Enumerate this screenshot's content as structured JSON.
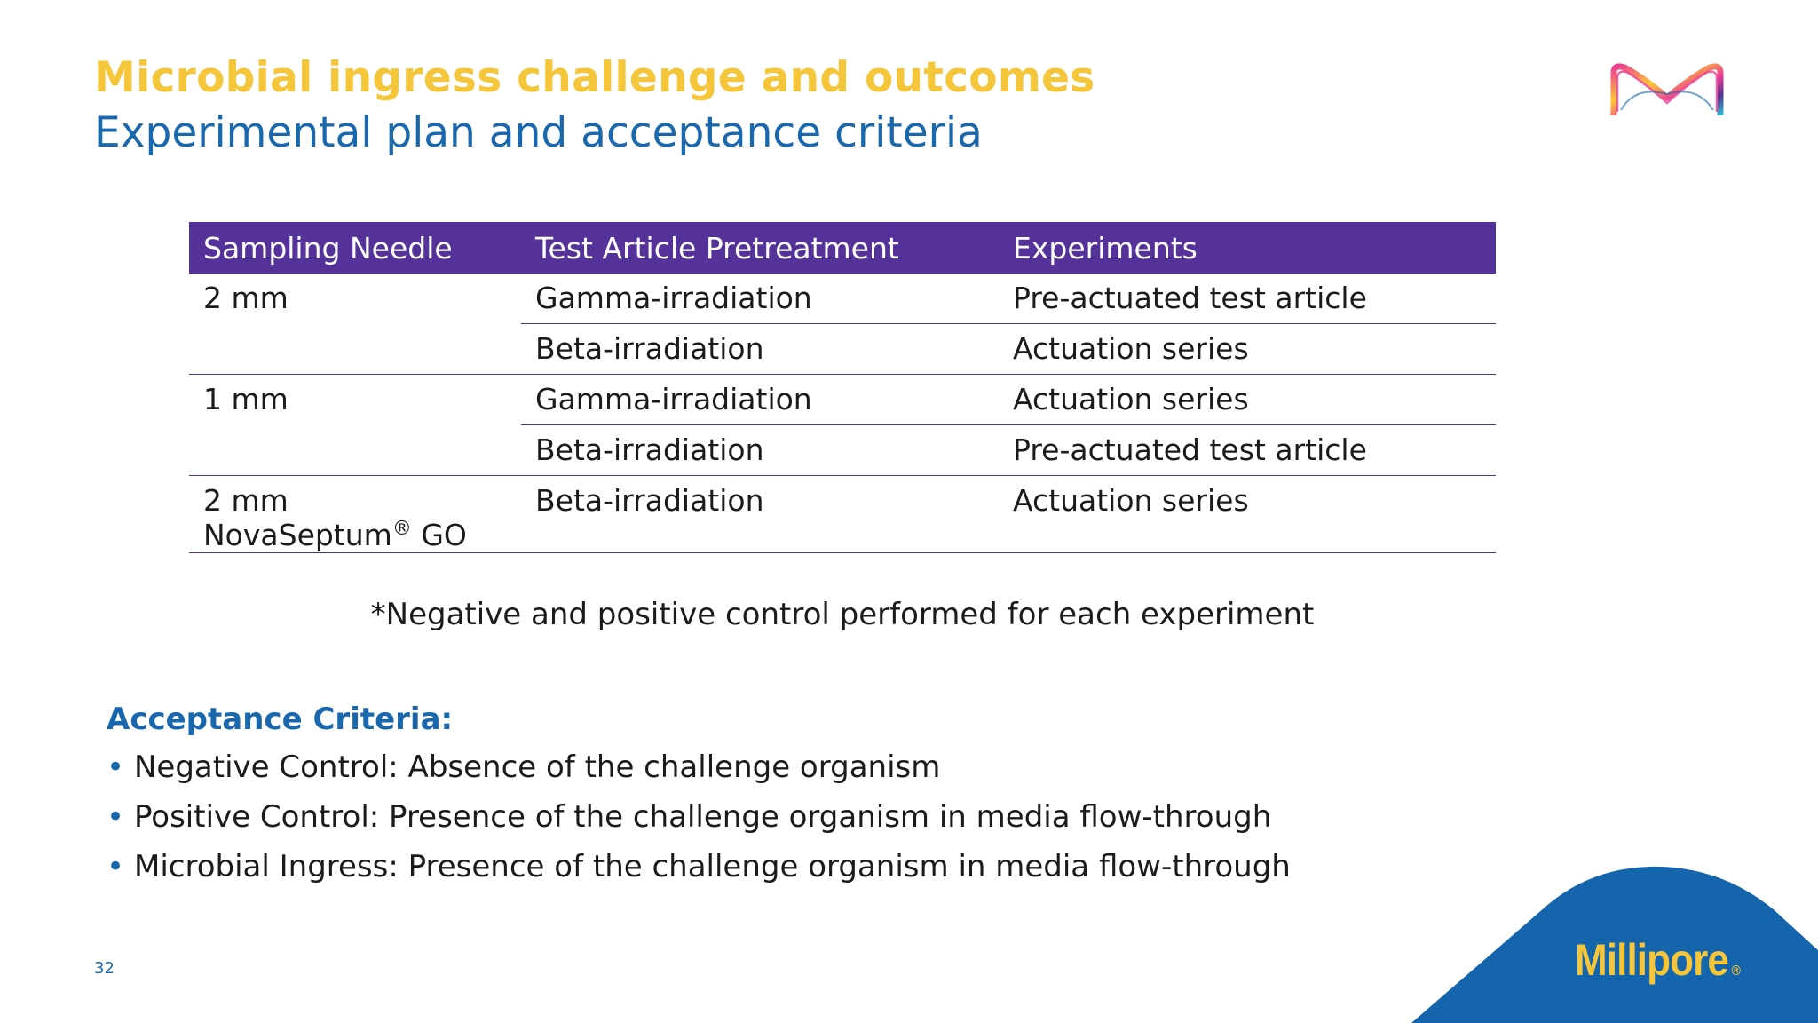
{
  "header": {
    "title": "Microbial ingress challenge and outcomes",
    "subtitle": "Experimental plan and acceptance criteria"
  },
  "logo": {
    "icon": "merck-m-logo-icon",
    "colors": [
      "#eb3c96",
      "#ffc832",
      "#503291",
      "#0f69af",
      "#2dbecd"
    ]
  },
  "table": {
    "headers": [
      "Sampling Needle",
      "Test Article Pretreatment",
      "Experiments"
    ],
    "rows": [
      {
        "needle": "2 mm",
        "pretreatment": "Gamma-irradiation",
        "experiment": "Pre-actuated test article"
      },
      {
        "needle": "",
        "pretreatment": "Beta-irradiation",
        "experiment": "Actuation series"
      },
      {
        "needle": "1 mm",
        "pretreatment": "Gamma-irradiation",
        "experiment": "Actuation series"
      },
      {
        "needle": "",
        "pretreatment": "Beta-irradiation",
        "experiment": "Pre-actuated test article"
      },
      {
        "needle": "2 mm",
        "needle_product": "NovaSeptum",
        "needle_product_mark": "®",
        "needle_product_suffix": " GO",
        "pretreatment": "Beta-irradiation",
        "experiment": "Actuation series"
      }
    ],
    "footnote": "*Negative and positive control performed for each experiment"
  },
  "acceptance": {
    "heading": "Acceptance Criteria:",
    "bullet": "•",
    "items": [
      "Negative Control: Absence of the challenge organism",
      "Positive Control: Presence of the challenge organism in media flow-through",
      "Microbial Ingress: Presence of the challenge organism in media flow-through"
    ]
  },
  "footer": {
    "page_number": "32",
    "brand": "Millipore",
    "brand_mark": "®"
  },
  "colors": {
    "title": "#f5c53a",
    "subtitle": "#1968ad",
    "table_header": "#54329a",
    "accent_blue": "#1968ad",
    "brand_yellow": "#f5c53a"
  }
}
